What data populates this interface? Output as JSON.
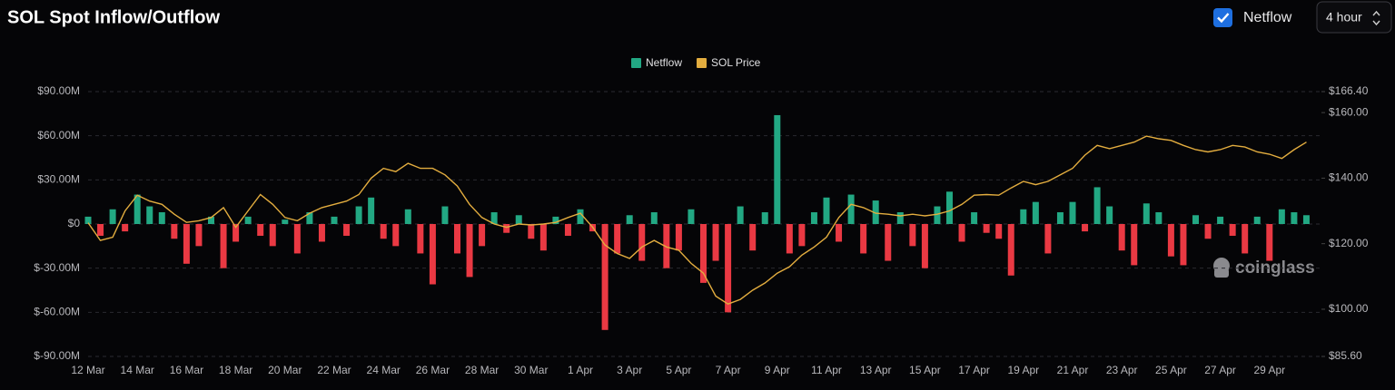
{
  "chart_data": {
    "type": "bar",
    "title": "SOL Spot Inflow/Outflow",
    "categories": [
      "12 Mar",
      null,
      null,
      null,
      "14 Mar",
      null,
      null,
      null,
      "16 Mar",
      null,
      null,
      null,
      "18 Mar",
      null,
      null,
      null,
      "20 Mar",
      null,
      null,
      null,
      "22 Mar",
      null,
      null,
      null,
      "24 Mar",
      null,
      null,
      null,
      "26 Mar",
      null,
      null,
      null,
      "28 Mar",
      null,
      null,
      null,
      "30 Mar",
      null,
      null,
      null,
      "1 Apr",
      null,
      null,
      null,
      "3 Apr",
      null,
      null,
      null,
      "5 Apr",
      null,
      null,
      null,
      "7 Apr",
      null,
      null,
      null,
      "9 Apr",
      null,
      null,
      null,
      "11 Apr",
      null,
      null,
      null,
      "13 Apr",
      null,
      null,
      null,
      "15 Apr",
      null,
      null,
      null,
      "17 Apr",
      null,
      null,
      null,
      "19 Apr",
      null,
      null,
      null,
      "21 Apr",
      null,
      null,
      null,
      "23 Apr",
      null,
      null,
      null,
      "25 Apr",
      null,
      null,
      null,
      "27 Apr",
      null,
      null,
      null,
      "29 Apr",
      null,
      null,
      null
    ],
    "series": [
      {
        "name": "Netflow",
        "type": "bar",
        "color": "#22a883",
        "negative_color": "#ea3943",
        "values": [
          5,
          -8,
          10,
          -5,
          20,
          12,
          8,
          -10,
          -27,
          -15,
          5,
          -30,
          -12,
          5,
          -8,
          -15,
          3,
          -20,
          8,
          -12,
          5,
          -8,
          12,
          18,
          -10,
          -15,
          10,
          -20,
          -41,
          12,
          -20,
          -36,
          -15,
          8,
          -6,
          6,
          -10,
          -18,
          5,
          -8,
          10,
          -5,
          -72,
          -20,
          6,
          -25,
          8,
          -30,
          -18,
          10,
          -40,
          -25,
          -60,
          12,
          -18,
          8,
          74,
          -20,
          -15,
          8,
          18,
          -12,
          20,
          -20,
          16,
          -25,
          8,
          -15,
          -30,
          12,
          22,
          -12,
          8,
          -6,
          -10,
          -35,
          10,
          15,
          -20,
          8,
          15,
          -5,
          25,
          12,
          -18,
          -28,
          14,
          8,
          -22,
          -28,
          6,
          -10,
          5,
          -8,
          -20,
          5,
          -25,
          10,
          8,
          6
        ]
      },
      {
        "name": "SOL Price",
        "type": "line",
        "axis": "y2",
        "color": "#e3ad3f",
        "values": [
          126.4,
          121,
          122,
          130,
          134.8,
          133,
          132,
          129,
          126.5,
          127,
          128,
          131,
          125,
          130,
          135,
          132,
          128,
          127,
          129.3,
          131,
          132,
          133,
          135,
          140,
          143,
          142,
          144.5,
          143,
          143,
          141,
          137.6,
          132,
          128,
          126,
          125,
          126,
          125.7,
          126,
          126.5,
          128,
          129.3,
          125,
          119.6,
          117,
          115.5,
          119,
          121,
          119,
          118,
          114,
          111,
          104,
          101.6,
          103,
          105.8,
          108,
          111,
          113,
          116.5,
          119,
          122,
          128,
          132,
          131,
          129.3,
          129,
          128.5,
          129,
          128.5,
          129,
          130,
          132,
          134.8,
          135,
          134.8,
          137,
          139,
          138,
          139,
          141,
          143,
          147,
          150,
          149,
          150,
          151,
          152.8,
          152,
          151.5,
          150,
          148.7,
          148,
          148.7,
          150,
          149.5,
          148,
          147.3,
          146,
          148.7,
          151
        ]
      }
    ],
    "ylim": [
      -90,
      90
    ],
    "yticks": [
      {
        "value": -90,
        "label": "$-90.00M"
      },
      {
        "value": -60,
        "label": "$-60.00M"
      },
      {
        "value": -30,
        "label": "$-30.00M"
      },
      {
        "value": 0,
        "label": "$0"
      },
      {
        "value": 30,
        "label": "$30.00M"
      },
      {
        "value": 60,
        "label": "$60.00M"
      },
      {
        "value": 90,
        "label": "$90.00M"
      }
    ],
    "y2lim": [
      85.6,
      166.4
    ],
    "y2ticks": [
      {
        "value": 85.6,
        "label": "$85.60"
      },
      {
        "value": 100,
        "label": "$100.00"
      },
      {
        "value": 120,
        "label": "$120.00"
      },
      {
        "value": 140,
        "label": "$140.00"
      },
      {
        "value": 160,
        "label": "$160.00"
      },
      {
        "value": 166.4,
        "label": "$166.40"
      }
    ],
    "grid": true
  },
  "controls": {
    "checkbox_label": "Netflow",
    "checked": true,
    "interval": "4 hour"
  },
  "watermark": "coinglass"
}
